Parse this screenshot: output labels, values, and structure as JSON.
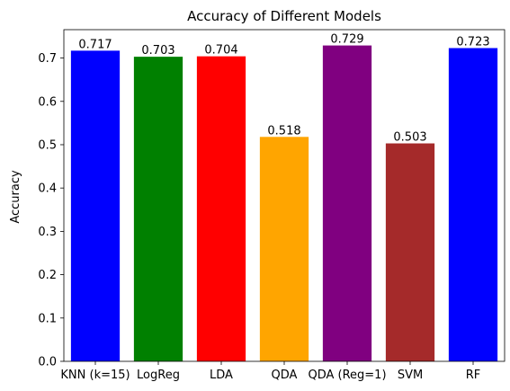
{
  "chart_data": {
    "type": "bar",
    "title": "Accuracy of Different Models",
    "xlabel": "",
    "ylabel": "Accuracy",
    "categories": [
      "KNN (k=15)",
      "LogReg",
      "LDA",
      "QDA",
      "QDA (Reg=1)",
      "SVM",
      "RF"
    ],
    "values": [
      0.717,
      0.703,
      0.704,
      0.518,
      0.729,
      0.503,
      0.723
    ],
    "data_labels": [
      "0.717",
      "0.703",
      "0.704",
      "0.518",
      "0.729",
      "0.503",
      "0.723"
    ],
    "colors": [
      "#0000ff",
      "#008000",
      "#ff0000",
      "#ffa500",
      "#800080",
      "#a52a2a",
      "#0000ff"
    ],
    "yticks": [
      0.0,
      0.1,
      0.2,
      0.3,
      0.4,
      0.5,
      0.6,
      0.7
    ],
    "ytick_labels": [
      "0.0",
      "0.1",
      "0.2",
      "0.3",
      "0.4",
      "0.5",
      "0.6",
      "0.7"
    ],
    "ylim": [
      0,
      0.7655
    ],
    "grid": false,
    "legend": "none"
  }
}
